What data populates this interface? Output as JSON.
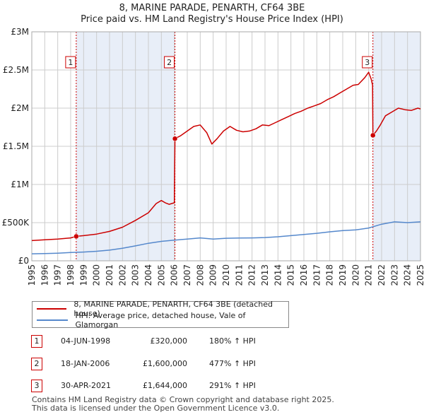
{
  "title": "8, MARINE PARADE, PENARTH, CF64 3BE",
  "subtitle": "Price paid vs. HM Land Registry's House Price Index (HPI)",
  "colors": {
    "price_line": "#cc0000",
    "hpi_line": "#5588cc",
    "shade": "#e8eef8",
    "grid": "#cccccc"
  },
  "chart_data": {
    "type": "line",
    "title": "8, MARINE PARADE, PENARTH, CF64 3BE",
    "xlabel": "",
    "ylabel": "",
    "xlim": [
      1995,
      2025
    ],
    "ylim": [
      0,
      3000000
    ],
    "y_ticks": [
      0,
      500000,
      1000000,
      1500000,
      2000000,
      2500000,
      3000000
    ],
    "y_tick_labels": [
      "£0",
      "£500K",
      "£1M",
      "£1.5M",
      "£2M",
      "£2.5M",
      "£3M"
    ],
    "x_ticks": [
      1995,
      1996,
      1997,
      1998,
      1999,
      2000,
      2001,
      2002,
      2003,
      2004,
      2005,
      2006,
      2007,
      2008,
      2009,
      2010,
      2011,
      2012,
      2013,
      2014,
      2015,
      2016,
      2017,
      2018,
      2019,
      2020,
      2021,
      2022,
      2023,
      2024,
      2025
    ],
    "x_tick_labels": [
      "1995",
      "1996",
      "1997",
      "1998",
      "1999",
      "2000",
      "2001",
      "2002",
      "2003",
      "2004",
      "2005",
      "2006",
      "2007",
      "2008",
      "2009",
      "2010",
      "2011",
      "2012",
      "2013",
      "2014",
      "2015",
      "2016",
      "2017",
      "2018",
      "2019",
      "2020",
      "2021",
      "2022",
      "2023",
      "2024",
      "2025"
    ],
    "series": [
      {
        "name": "8, MARINE PARADE, PENARTH, CF64 3BE (detached house)",
        "color": "#cc0000",
        "points": [
          [
            1995.0,
            265000
          ],
          [
            1996.0,
            275000
          ],
          [
            1997.0,
            285000
          ],
          [
            1998.0,
            300000
          ],
          [
            1998.43,
            320000
          ],
          [
            1999.0,
            330000
          ],
          [
            2000.0,
            350000
          ],
          [
            2001.0,
            385000
          ],
          [
            2002.0,
            440000
          ],
          [
            2003.0,
            530000
          ],
          [
            2004.0,
            630000
          ],
          [
            2004.6,
            750000
          ],
          [
            2005.0,
            790000
          ],
          [
            2005.3,
            760000
          ],
          [
            2005.6,
            740000
          ],
          [
            2006.0,
            760000
          ],
          [
            2006.05,
            1600000
          ],
          [
            2006.5,
            1640000
          ],
          [
            2007.0,
            1700000
          ],
          [
            2007.5,
            1760000
          ],
          [
            2008.0,
            1780000
          ],
          [
            2008.5,
            1680000
          ],
          [
            2008.9,
            1530000
          ],
          [
            2009.3,
            1600000
          ],
          [
            2009.8,
            1700000
          ],
          [
            2010.3,
            1760000
          ],
          [
            2010.8,
            1710000
          ],
          [
            2011.3,
            1690000
          ],
          [
            2011.8,
            1700000
          ],
          [
            2012.3,
            1730000
          ],
          [
            2012.8,
            1780000
          ],
          [
            2013.3,
            1770000
          ],
          [
            2013.8,
            1810000
          ],
          [
            2014.3,
            1850000
          ],
          [
            2014.8,
            1890000
          ],
          [
            2015.3,
            1930000
          ],
          [
            2015.8,
            1960000
          ],
          [
            2016.3,
            2000000
          ],
          [
            2016.8,
            2030000
          ],
          [
            2017.3,
            2060000
          ],
          [
            2017.8,
            2110000
          ],
          [
            2018.3,
            2150000
          ],
          [
            2018.8,
            2200000
          ],
          [
            2019.3,
            2250000
          ],
          [
            2019.8,
            2300000
          ],
          [
            2020.2,
            2310000
          ],
          [
            2020.7,
            2400000
          ],
          [
            2021.0,
            2470000
          ],
          [
            2021.2,
            2380000
          ],
          [
            2021.3,
            2300000
          ],
          [
            2021.33,
            1644000
          ],
          [
            2021.6,
            1700000
          ],
          [
            2021.9,
            1780000
          ],
          [
            2022.3,
            1900000
          ],
          [
            2022.8,
            1950000
          ],
          [
            2023.3,
            2000000
          ],
          [
            2023.8,
            1980000
          ],
          [
            2024.3,
            1970000
          ],
          [
            2024.8,
            2000000
          ],
          [
            2025.0,
            1990000
          ]
        ]
      },
      {
        "name": "HPI: Average price, detached house, Vale of Glamorgan",
        "color": "#5588cc",
        "points": [
          [
            1995.0,
            92000
          ],
          [
            1996.0,
            95000
          ],
          [
            1997.0,
            100000
          ],
          [
            1998.0,
            108000
          ],
          [
            1999.0,
            115000
          ],
          [
            2000.0,
            125000
          ],
          [
            2001.0,
            140000
          ],
          [
            2002.0,
            165000
          ],
          [
            2003.0,
            195000
          ],
          [
            2004.0,
            230000
          ],
          [
            2005.0,
            255000
          ],
          [
            2006.0,
            270000
          ],
          [
            2007.0,
            285000
          ],
          [
            2008.0,
            300000
          ],
          [
            2009.0,
            285000
          ],
          [
            2010.0,
            295000
          ],
          [
            2011.0,
            298000
          ],
          [
            2012.0,
            300000
          ],
          [
            2013.0,
            305000
          ],
          [
            2014.0,
            315000
          ],
          [
            2015.0,
            330000
          ],
          [
            2016.0,
            345000
          ],
          [
            2017.0,
            360000
          ],
          [
            2018.0,
            380000
          ],
          [
            2019.0,
            395000
          ],
          [
            2020.0,
            405000
          ],
          [
            2021.0,
            430000
          ],
          [
            2022.0,
            480000
          ],
          [
            2023.0,
            510000
          ],
          [
            2024.0,
            500000
          ],
          [
            2025.0,
            510000
          ]
        ]
      }
    ],
    "markers": [
      {
        "label": "1",
        "x": 1998.43,
        "y": 320000
      },
      {
        "label": "2",
        "x": 2006.05,
        "y": 1600000
      },
      {
        "label": "3",
        "x": 2021.33,
        "y": 1644000
      }
    ],
    "shaded_ranges": [
      [
        1998.43,
        2006.05
      ],
      [
        2021.33,
        2025.0
      ]
    ]
  },
  "legend": {
    "price_label": "8, MARINE PARADE, PENARTH, CF64 3BE (detached house)",
    "hpi_label": "HPI: Average price, detached house, Vale of Glamorgan"
  },
  "transactions": [
    {
      "num": "1",
      "date": "04-JUN-1998",
      "price": "£320,000",
      "hpi": "180% ↑ HPI"
    },
    {
      "num": "2",
      "date": "18-JAN-2006",
      "price": "£1,600,000",
      "hpi": "477% ↑ HPI"
    },
    {
      "num": "3",
      "date": "30-APR-2021",
      "price": "£1,644,000",
      "hpi": "291% ↑ HPI"
    }
  ],
  "footer": {
    "line1": "Contains HM Land Registry data © Crown copyright and database right 2025.",
    "line2": "This data is licensed under the Open Government Licence v3.0."
  }
}
